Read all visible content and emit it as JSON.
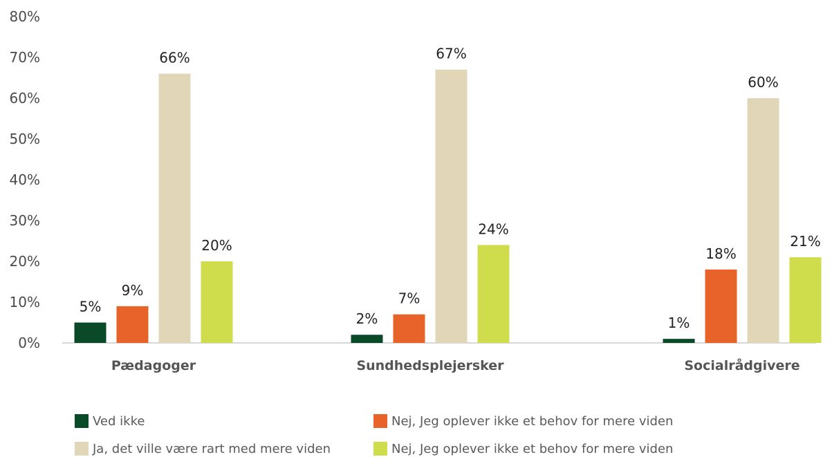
{
  "chart_data": {
    "type": "bar",
    "categories": [
      "Pædagoger",
      "Sundhedsplejersker",
      "Socialrådgivere"
    ],
    "series": [
      {
        "name": "Ved ikke",
        "color": "#0b4a28",
        "values": [
          5,
          2,
          1
        ]
      },
      {
        "name": "Nej, Jeg oplever ikke et behov for mere viden",
        "color": "#e8632a",
        "values": [
          9,
          7,
          18
        ]
      },
      {
        "name": "Ja, det ville være rart med mere viden",
        "color": "#e1d6b8",
        "values": [
          66,
          67,
          60
        ]
      },
      {
        "name": "Nej, Jeg oplever ikke et behov for mere viden",
        "color": "#cfdd4c",
        "values": [
          20,
          24,
          21
        ]
      }
    ],
    "data_labels": [
      [
        "5%",
        "9%",
        "66%",
        "20%"
      ],
      [
        "2%",
        "7%",
        "67%",
        "24%"
      ],
      [
        "1%",
        "18%",
        "60%",
        "21%"
      ]
    ],
    "ylim": [
      0,
      80
    ],
    "yticks": [
      "0%",
      "10%",
      "20%",
      "30%",
      "40%",
      "50%",
      "60%",
      "70%",
      "80%"
    ],
    "grid": false,
    "legend_position": "bottom"
  }
}
